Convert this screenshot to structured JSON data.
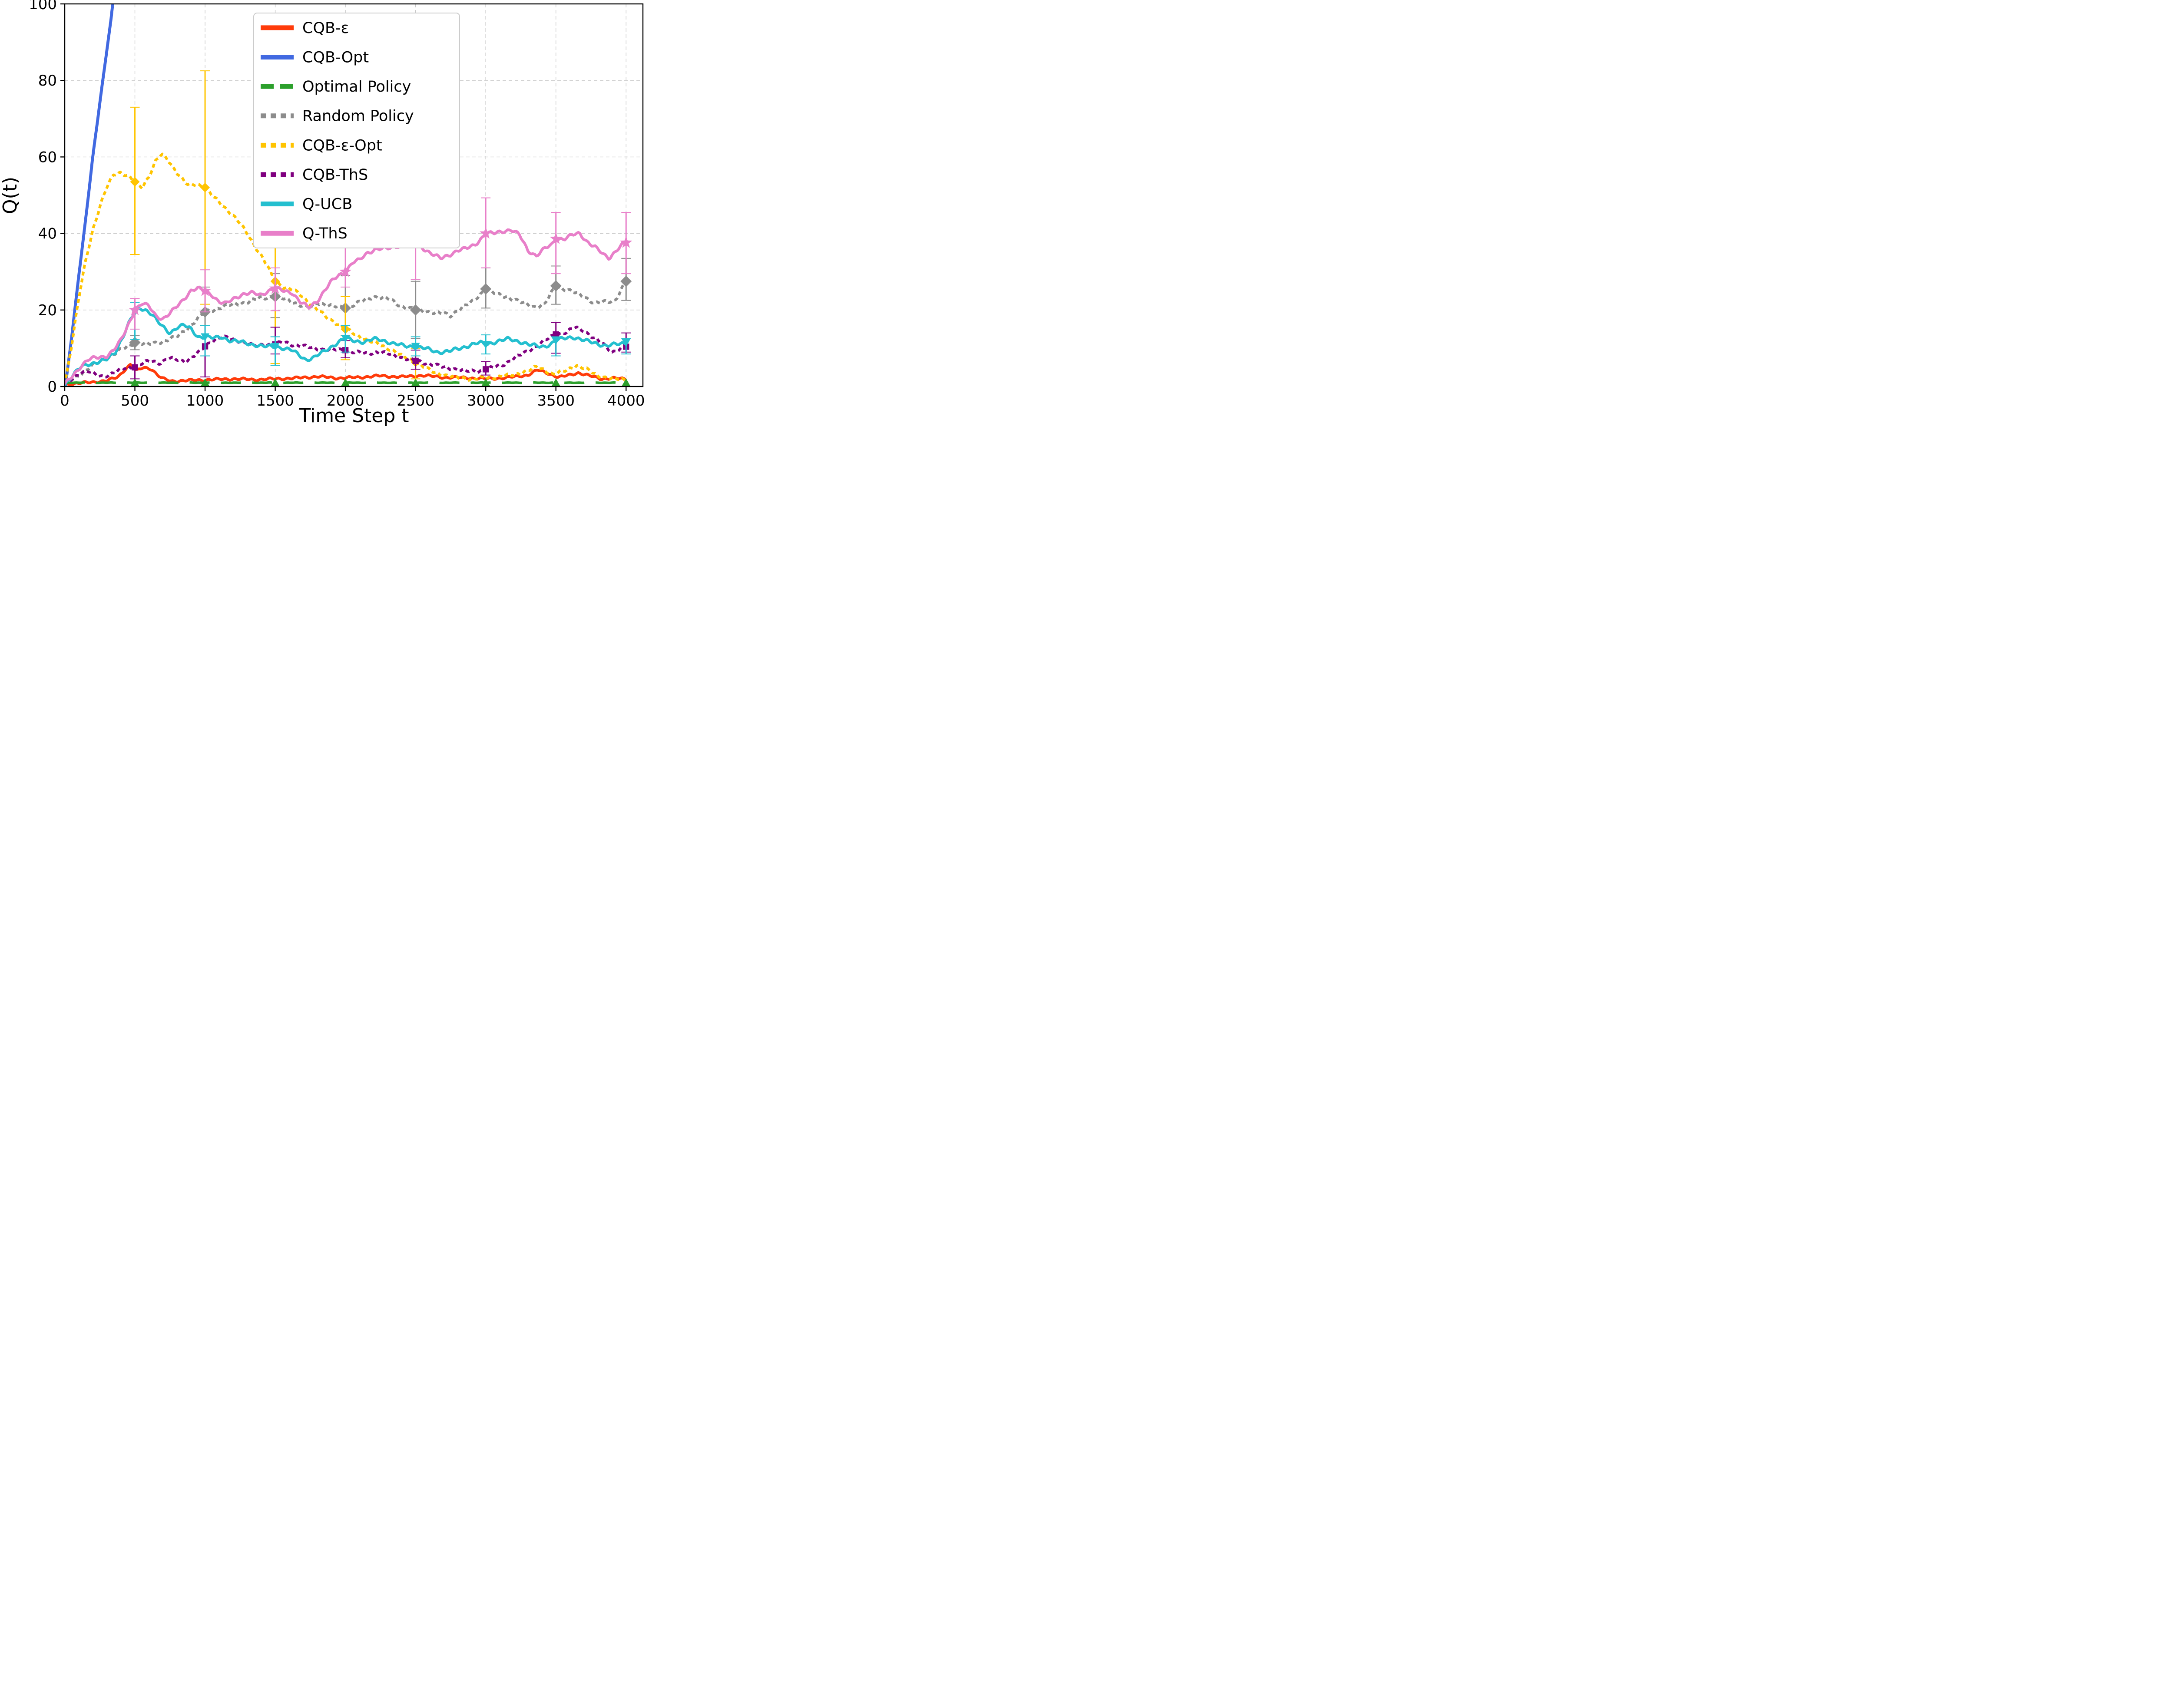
{
  "chart_data": {
    "type": "line",
    "title": "",
    "xlabel": "Time Step t",
    "ylabel": "Q(t)",
    "xlim": [
      0,
      4120
    ],
    "ylim": [
      0,
      100
    ],
    "xticks": [
      0,
      500,
      1000,
      1500,
      2000,
      2500,
      3000,
      3500,
      4000
    ],
    "yticks": [
      0,
      20,
      40,
      60,
      80,
      100
    ],
    "grid": "dashed-both-axes",
    "legend_position": "upper center-left inside",
    "series": [
      {
        "name": "cqb-eps",
        "label": "CQB-ε",
        "color": "#FF3B0A",
        "style": "solid",
        "marker": "circle",
        "linewidth": 10,
        "x": [
          0,
          150,
          300,
          380,
          430,
          470,
          510,
          560,
          620,
          660,
          700,
          760,
          900,
          1050,
          1200,
          1350,
          1500,
          1650,
          1800,
          1950,
          2100,
          2250,
          2400,
          2550,
          2700,
          2850,
          3000,
          3150,
          3300,
          3370,
          3450,
          3520,
          3600,
          3660,
          3740,
          3820,
          3900,
          4000
        ],
        "y": [
          0.5,
          1,
          1.5,
          2.5,
          4.5,
          5.8,
          4,
          5,
          4.6,
          3,
          2,
          1.4,
          1.6,
          1.8,
          2,
          1.8,
          2,
          2.2,
          2.6,
          2.2,
          2.4,
          2.8,
          2.5,
          2.9,
          2.4,
          2.3,
          2,
          2.3,
          3,
          4.3,
          3.4,
          2.4,
          3,
          3.6,
          2.8,
          2,
          2.2,
          1.9
        ],
        "error_bars": []
      },
      {
        "name": "cqb-opt",
        "label": "CQB-Opt",
        "color": "#4169E1",
        "style": "solid",
        "marker": "none",
        "linewidth": 11,
        "x": [
          5,
          50,
          100,
          150,
          200,
          250,
          300,
          330,
          345
        ],
        "y": [
          0,
          13,
          29,
          44,
          60,
          74,
          88,
          96,
          101
        ],
        "error_bars": []
      },
      {
        "name": "optimal-policy",
        "label": "Optimal Policy",
        "color": "#2CA02C",
        "style": "dashed",
        "marker": "triangle-up",
        "linewidth": 9,
        "x": [
          0,
          4000
        ],
        "y": [
          1,
          1
        ],
        "marker_t": [
          500,
          1000,
          1500,
          2000,
          2500,
          3000,
          3500,
          4000
        ],
        "error_bars": []
      },
      {
        "name": "random-policy",
        "label": "Random Policy",
        "color": "#8C8C8C",
        "style": "dotted",
        "marker": "diamond",
        "linewidth": 10,
        "x": [
          0,
          100,
          200,
          300,
          400,
          500,
          600,
          700,
          800,
          900,
          1000,
          1100,
          1200,
          1300,
          1400,
          1500,
          1600,
          1700,
          1750,
          1800,
          1900,
          2000,
          2100,
          2200,
          2300,
          2400,
          2500,
          2600,
          2700,
          2750,
          2800,
          2900,
          3000,
          3080,
          3150,
          3250,
          3350,
          3420,
          3500,
          3600,
          3700,
          3780,
          3850,
          3920,
          3960,
          4000
        ],
        "y": [
          0.5,
          3,
          5.5,
          7.5,
          9.5,
          11.5,
          11,
          11.8,
          13,
          16,
          19.5,
          20.5,
          21.5,
          22,
          23.2,
          23.5,
          22.5,
          21,
          20.5,
          22,
          21,
          20.5,
          22,
          23.5,
          23,
          21,
          20,
          19.5,
          19,
          18.5,
          20,
          22,
          25.5,
          24,
          23.5,
          22,
          20.8,
          21.5,
          26.3,
          25,
          23.5,
          21.8,
          22,
          22.5,
          25,
          27.5
        ],
        "error_bars": [
          {
            "t": 500,
            "lo": 9.6,
            "hi": 13.4
          },
          {
            "t": 1000,
            "lo": 16,
            "hi": 26
          },
          {
            "t": 1500,
            "lo": 18,
            "hi": 29.5
          },
          {
            "t": 2000,
            "lo": 13.4,
            "hi": 29
          },
          {
            "t": 2500,
            "lo": 12.5,
            "hi": 27.5
          },
          {
            "t": 3000,
            "lo": 20.5,
            "hi": 31
          },
          {
            "t": 3500,
            "lo": 21.5,
            "hi": 31.5
          },
          {
            "t": 4000,
            "lo": 22.5,
            "hi": 33.5
          }
        ]
      },
      {
        "name": "cqb-eps-opt",
        "label": "CQB-ε-Opt",
        "color": "#FFC400",
        "style": "dotted",
        "marker": "diamond",
        "linewidth": 10,
        "x": [
          0,
          50,
          100,
          150,
          200,
          250,
          300,
          350,
          400,
          450,
          500,
          550,
          600,
          650,
          690,
          730,
          780,
          830,
          880,
          940,
          1000,
          1060,
          1120,
          1180,
          1240,
          1300,
          1360,
          1420,
          1470,
          1500,
          1560,
          1620,
          1680,
          1740,
          1800,
          1870,
          1940,
          2000,
          2080,
          2160,
          2240,
          2320,
          2400,
          2470,
          2540,
          2610,
          2700,
          2800,
          2900,
          3000,
          3100,
          3200,
          3300,
          3360,
          3420,
          3480,
          3560,
          3650,
          3720,
          3800,
          3900,
          4000
        ],
        "y": [
          0.5,
          11,
          23,
          33,
          41,
          47,
          52,
          55.5,
          56,
          55,
          53.5,
          52,
          55,
          59,
          60.6,
          59.5,
          57,
          54.5,
          52.5,
          53,
          52,
          49.5,
          47.5,
          45.5,
          43,
          40,
          36.5,
          33,
          29.5,
          27.5,
          26,
          25.3,
          24,
          22,
          20,
          18,
          16.5,
          15,
          13.5,
          12,
          11,
          9.8,
          8,
          7,
          5.5,
          4,
          3,
          2.3,
          2,
          2.2,
          2.6,
          3,
          4.2,
          5,
          4.3,
          3.2,
          4,
          5.6,
          4.4,
          2.8,
          2,
          1.8
        ],
        "error_bars": [
          {
            "t": 500,
            "lo": 34.5,
            "hi": 73
          },
          {
            "t": 1000,
            "lo": 21.5,
            "hi": 82.5
          },
          {
            "t": 1500,
            "lo": 6,
            "hi": 38
          },
          {
            "t": 2000,
            "lo": 7,
            "hi": 23.5
          },
          {
            "t": 2500,
            "lo": 2,
            "hi": 10
          }
        ]
      },
      {
        "name": "cqb-ths",
        "label": "CQB-ThS",
        "color": "#800080",
        "style": "dotted",
        "marker": "square",
        "linewidth": 10,
        "x": [
          0,
          60,
          120,
          170,
          220,
          270,
          320,
          380,
          440,
          500,
          560,
          620,
          680,
          740,
          800,
          860,
          920,
          960,
          1000,
          1060,
          1120,
          1180,
          1240,
          1300,
          1360,
          1420,
          1500,
          1560,
          1620,
          1700,
          1780,
          1860,
          1950,
          2000,
          2060,
          2140,
          2220,
          2300,
          2380,
          2460,
          2540,
          2620,
          2700,
          2780,
          2860,
          2950,
          3000,
          3060,
          3130,
          3200,
          3280,
          3360,
          3440,
          3500,
          3570,
          3640,
          3700,
          3760,
          3830,
          3900,
          3950,
          4000
        ],
        "y": [
          0.5,
          2.2,
          3.8,
          4,
          3,
          2.6,
          3.2,
          4,
          5,
          5,
          6.2,
          6.6,
          6.2,
          7.4,
          7,
          6.6,
          8,
          9,
          10.5,
          12.2,
          13,
          12.4,
          12,
          11.2,
          10.6,
          11,
          11,
          11.6,
          11,
          10.5,
          10,
          9.6,
          9.6,
          9.5,
          9,
          8.6,
          9,
          8.6,
          7.8,
          7,
          6.4,
          5.8,
          5,
          4.6,
          4,
          4,
          4.5,
          5,
          5.8,
          7.4,
          8.8,
          10.6,
          12.4,
          13.6,
          14.2,
          15.4,
          14.6,
          13,
          11.2,
          9,
          9.8,
          10.4
        ],
        "error_bars": [
          {
            "t": 500,
            "lo": 2,
            "hi": 8
          },
          {
            "t": 1000,
            "lo": 2.5,
            "hi": 16
          },
          {
            "t": 1500,
            "lo": 8.5,
            "hi": 15.5
          },
          {
            "t": 2000,
            "lo": 7.5,
            "hi": 12
          },
          {
            "t": 2500,
            "lo": 4.5,
            "hi": 9.5
          },
          {
            "t": 3000,
            "lo": 3,
            "hi": 6.5
          },
          {
            "t": 3500,
            "lo": 8.7,
            "hi": 16.7
          },
          {
            "t": 4000,
            "lo": 9,
            "hi": 14
          }
        ]
      },
      {
        "name": "q-ucb",
        "label": "Q-UCB",
        "color": "#24BFCF",
        "style": "solid",
        "marker": "triangle-down",
        "linewidth": 10,
        "x": [
          0,
          60,
          120,
          180,
          240,
          300,
          360,
          420,
          470,
          500,
          540,
          580,
          620,
          660,
          700,
          750,
          800,
          850,
          900,
          950,
          1000,
          1060,
          1120,
          1180,
          1260,
          1340,
          1420,
          1500,
          1560,
          1620,
          1680,
          1720,
          1780,
          1840,
          1900,
          1950,
          2000,
          2060,
          2140,
          2200,
          2260,
          2340,
          2420,
          2500,
          2580,
          2660,
          2740,
          2820,
          2900,
          2960,
          3000,
          3080,
          3160,
          3240,
          3320,
          3400,
          3460,
          3500,
          3560,
          3620,
          3700,
          3780,
          3860,
          3930,
          4000
        ],
        "y": [
          0.5,
          3,
          5.2,
          6,
          6.4,
          7,
          9,
          13.5,
          17.5,
          19.5,
          20.5,
          20,
          19,
          17,
          15.5,
          14,
          15.5,
          16,
          15,
          13,
          13,
          12.6,
          13,
          12,
          11.6,
          11,
          10.4,
          10.5,
          10,
          9.4,
          8,
          7,
          7.6,
          9,
          10.4,
          11.6,
          12.6,
          12,
          11.6,
          12.4,
          12.2,
          11.2,
          10.6,
          10.5,
          9.8,
          9,
          9.2,
          10,
          11,
          11.4,
          11,
          11.8,
          12.4,
          11.8,
          10.8,
          10.4,
          11,
          12,
          12.6,
          13,
          12,
          11.4,
          10.6,
          11,
          11.5
        ],
        "error_bars": [
          {
            "t": 500,
            "lo": 12.3,
            "hi": 22
          },
          {
            "t": 1000,
            "lo": 8,
            "hi": 16
          },
          {
            "t": 1500,
            "lo": 5.5,
            "hi": 13
          },
          {
            "t": 2000,
            "lo": 9,
            "hi": 16
          },
          {
            "t": 2500,
            "lo": 8,
            "hi": 13
          },
          {
            "t": 3000,
            "lo": 8.5,
            "hi": 13.5
          },
          {
            "t": 3500,
            "lo": 8,
            "hi": 13
          },
          {
            "t": 4000,
            "lo": 8.5,
            "hi": 12.5
          }
        ]
      },
      {
        "name": "q-ths",
        "label": "Q-ThS",
        "color": "#E87FC9",
        "style": "solid",
        "marker": "star",
        "linewidth": 10,
        "x": [
          0,
          60,
          120,
          170,
          230,
          300,
          350,
          400,
          450,
          500,
          550,
          600,
          650,
          700,
          750,
          800,
          850,
          900,
          950,
          1000,
          1050,
          1100,
          1150,
          1200,
          1260,
          1330,
          1400,
          1450,
          1500,
          1560,
          1620,
          1680,
          1740,
          1800,
          1850,
          1900,
          1950,
          2000,
          2050,
          2100,
          2160,
          2220,
          2300,
          2400,
          2500,
          2560,
          2620,
          2680,
          2740,
          2800,
          2860,
          2920,
          2960,
          3000,
          3060,
          3120,
          3180,
          3240,
          3300,
          3360,
          3420,
          3470,
          3500,
          3560,
          3620,
          3670,
          3720,
          3780,
          3840,
          3880,
          3930,
          3970,
          4000
        ],
        "y": [
          0.5,
          3,
          5.5,
          7,
          7.6,
          8,
          9.5,
          12,
          16,
          20,
          21.6,
          21,
          18.6,
          17.6,
          19,
          21,
          23,
          25,
          25.6,
          25,
          24,
          22,
          21.6,
          23,
          24,
          24.4,
          24,
          25,
          25.6,
          25,
          24.6,
          22,
          20.6,
          22.4,
          25,
          27.4,
          29,
          30,
          32.4,
          33,
          35,
          36,
          36,
          37,
          37.6,
          36,
          34.6,
          33.4,
          34.4,
          35.6,
          36,
          37,
          38.4,
          40,
          40,
          40.6,
          41,
          39.6,
          35.6,
          34.2,
          36,
          37,
          38.6,
          38.6,
          39.6,
          40,
          38,
          36.4,
          34.4,
          33.6,
          35.6,
          37,
          37.6
        ],
        "error_bars": [
          {
            "t": 500,
            "lo": 15,
            "hi": 23
          },
          {
            "t": 1000,
            "lo": 19.5,
            "hi": 30.5
          },
          {
            "t": 1500,
            "lo": 19.8,
            "hi": 31
          },
          {
            "t": 2000,
            "lo": 26,
            "hi": 38.5
          },
          {
            "t": 2500,
            "lo": 28,
            "hi": 39.5
          },
          {
            "t": 3000,
            "lo": 31,
            "hi": 49.3
          },
          {
            "t": 3500,
            "lo": 29.5,
            "hi": 45.5
          },
          {
            "t": 4000,
            "lo": 29.5,
            "hi": 45.5
          }
        ]
      }
    ],
    "legend_order": [
      "cqb-eps",
      "cqb-opt",
      "optimal-policy",
      "random-policy",
      "cqb-eps-opt",
      "cqb-ths",
      "q-ucb",
      "q-ths"
    ],
    "colors": {
      "grid": "#c9c9c9",
      "spine": "#000000",
      "legend_border": "#cccccc",
      "background": "#ffffff"
    }
  }
}
